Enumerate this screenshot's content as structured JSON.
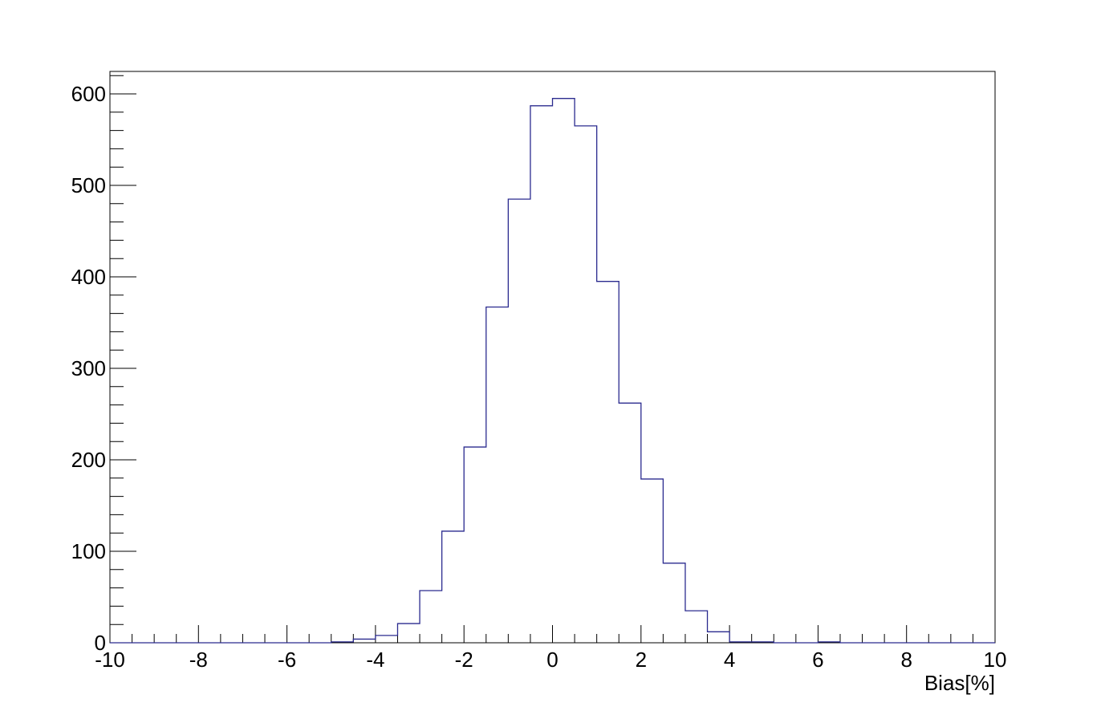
{
  "chart_data": {
    "type": "histogram",
    "title": "",
    "xlabel": "Bias[%]",
    "ylabel": "",
    "xlim": [
      -10,
      10
    ],
    "ylim": [
      0,
      625
    ],
    "x_ticks": [
      "-10",
      "-8",
      "-6",
      "-4",
      "-2",
      "0",
      "2",
      "4",
      "6",
      "8",
      "10"
    ],
    "y_ticks": [
      "0",
      "100",
      "200",
      "300",
      "400",
      "500",
      "600"
    ],
    "bin_edges": [
      -10,
      -9.5,
      -9,
      -8.5,
      -8,
      -7.5,
      -7,
      -6.5,
      -6,
      -5.5,
      -5,
      -4.5,
      -4,
      -3.5,
      -3,
      -2.5,
      -2,
      -1.5,
      -1,
      -0.5,
      0,
      0.5,
      1,
      1.5,
      2,
      2.5,
      3,
      3.5,
      4,
      4.5,
      5,
      5.5,
      6,
      6.5,
      7,
      7.5,
      8,
      8.5,
      9,
      9.5,
      10
    ],
    "counts": [
      0,
      0,
      0,
      0,
      0,
      0,
      0,
      0,
      0,
      0,
      1,
      4,
      8,
      21,
      57,
      122,
      214,
      367,
      485,
      587,
      595,
      565,
      395,
      262,
      179,
      87,
      35,
      12,
      1,
      1,
      0,
      0,
      1,
      0,
      0,
      0,
      0,
      0,
      0,
      0
    ],
    "grid": false,
    "legend": "none",
    "line_color": "#2b2b8f",
    "frame_color": "#000000"
  }
}
